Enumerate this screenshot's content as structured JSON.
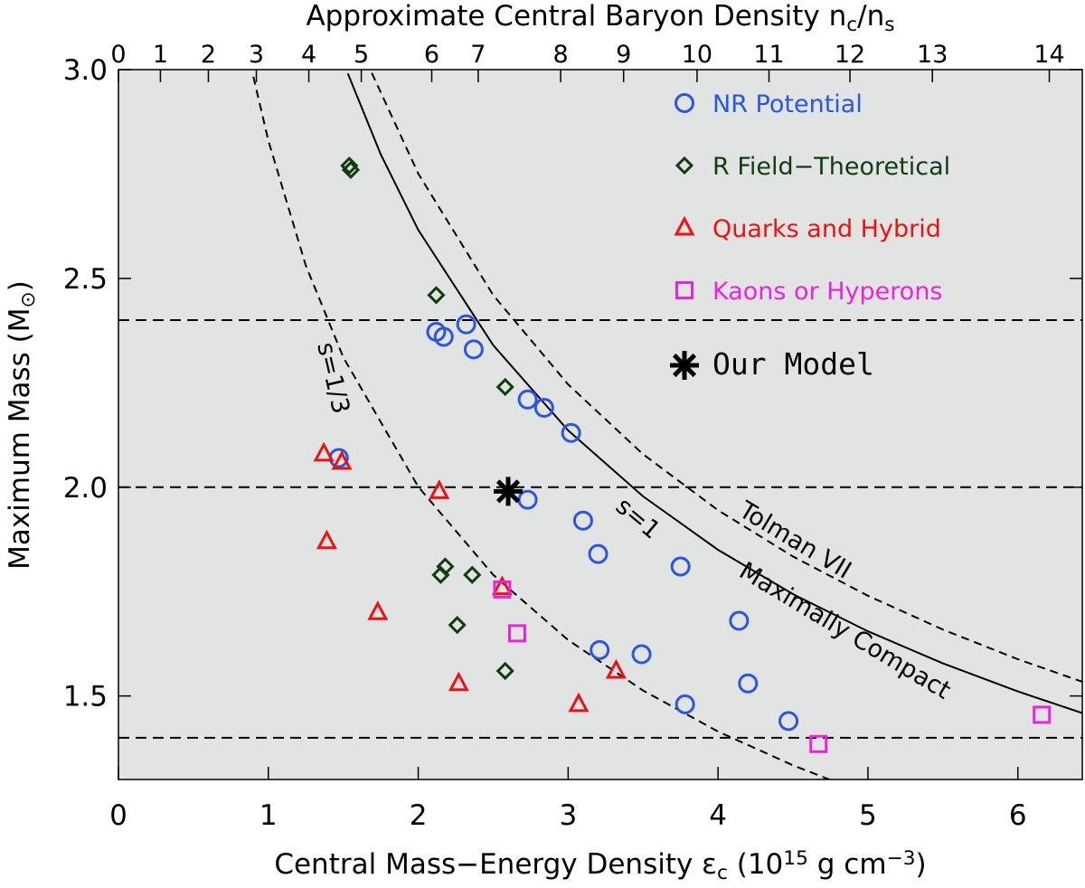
{
  "chart_data": {
    "type": "scatter",
    "xlabel": [
      "Central Mass−Energy Density ε",
      "c",
      " (10",
      "15",
      " g cm",
      "−3",
      ")"
    ],
    "x2label": [
      "Approximate Central Baryon Density n",
      "c",
      "/n",
      "s"
    ],
    "ylabel": [
      "Maximum Mass (M",
      "⊙",
      ")"
    ],
    "xlim": [
      0,
      6.43
    ],
    "ylim": [
      1.3,
      3.0
    ],
    "xticks": [
      0,
      1,
      2,
      3,
      4,
      5,
      6
    ],
    "yticks": [
      1.5,
      {
        "value": 2,
        "label": "2.0"
      },
      2.5,
      {
        "value": 3,
        "label": "3.0"
      }
    ],
    "x2ticks": [
      0,
      1,
      2,
      3,
      4,
      5,
      6,
      7,
      8,
      9,
      10,
      11,
      12,
      13,
      14
    ],
    "x2tick_epsilon": [
      0,
      0.28,
      0.6,
      0.92,
      1.27,
      1.62,
      2.09,
      2.4,
      2.95,
      3.37,
      3.86,
      4.34,
      4.88,
      5.43,
      6.21
    ],
    "hlines": [
      2.4,
      2.0,
      1.4
    ],
    "curves": [
      {
        "dash": true,
        "x": [
          0.9,
          1,
          1.25,
          1.5,
          2,
          2.5,
          3,
          3.5,
          4,
          4.5,
          4.75
        ],
        "values": [
          2.983,
          2.83,
          2.531,
          2.311,
          2.001,
          1.79,
          1.634,
          1.513,
          1.415,
          1.334,
          1.299
        ]
      },
      {
        "dash": false,
        "x": [
          1.53,
          1.75,
          2,
          2.5,
          3,
          3.5,
          4,
          4.5,
          5,
          5.5,
          6,
          6.43
        ],
        "values": [
          2.991,
          2.797,
          2.616,
          2.34,
          2.136,
          1.978,
          1.85,
          1.744,
          1.655,
          1.578,
          1.511,
          1.459
        ]
      },
      {
        "dash": true,
        "x": [
          1.69,
          2,
          2.5,
          3,
          3.5,
          4,
          4.5,
          5,
          5.5,
          6,
          6.43
        ],
        "values": [
          2.992,
          2.751,
          2.46,
          2.246,
          2.079,
          1.945,
          1.834,
          1.74,
          1.659,
          1.588,
          1.534
        ]
      }
    ],
    "annotations": [
      "s=1/3",
      "s=1",
      "Tolman VII",
      "Maximally Compact"
    ],
    "series": [
      {
        "name": "NR Potential",
        "marker": "circle",
        "color": "#2a55e5",
        "x": [
          1.47,
          2.12,
          2.17,
          2.32,
          2.37,
          2.73,
          2.84,
          3.02,
          2.73,
          3.1,
          3.2,
          3.75,
          4.14,
          3.21,
          3.49,
          4.2,
          3.78,
          4.47
        ],
        "values": [
          2.07,
          2.372,
          2.36,
          2.39,
          2.33,
          2.21,
          2.19,
          2.13,
          1.97,
          1.92,
          1.84,
          1.81,
          1.68,
          1.61,
          1.6,
          1.53,
          1.48,
          1.44
        ]
      },
      {
        "name": "R Field−Theoretical",
        "marker": "diamond",
        "color": "#0f3d0f",
        "x": [
          1.54,
          1.55,
          2.12,
          2.58,
          2.15,
          2.18,
          2.36,
          2.26,
          2.58
        ],
        "values": [
          2.77,
          2.76,
          2.46,
          2.24,
          1.79,
          1.81,
          1.79,
          1.67,
          1.56
        ]
      },
      {
        "name": "Quarks and Hybrid",
        "marker": "triangle",
        "color": "#ee1111",
        "x": [
          1.37,
          1.49,
          2.14,
          1.39,
          1.73,
          2.56,
          2.27,
          3.32,
          3.07
        ],
        "values": [
          2.08,
          2.06,
          1.99,
          1.87,
          1.7,
          1.76,
          1.53,
          1.56,
          1.48
        ]
      },
      {
        "name": "Kaons or Hyperons",
        "marker": "square",
        "color": "#ee22dd",
        "x": [
          2.56,
          2.66,
          4.67,
          6.16
        ],
        "values": [
          1.755,
          1.65,
          1.385,
          1.455
        ]
      },
      {
        "name": "Our Model",
        "marker": "star",
        "color": "#000000",
        "x": [
          2.6
        ],
        "values": [
          1.99
        ]
      }
    ]
  }
}
